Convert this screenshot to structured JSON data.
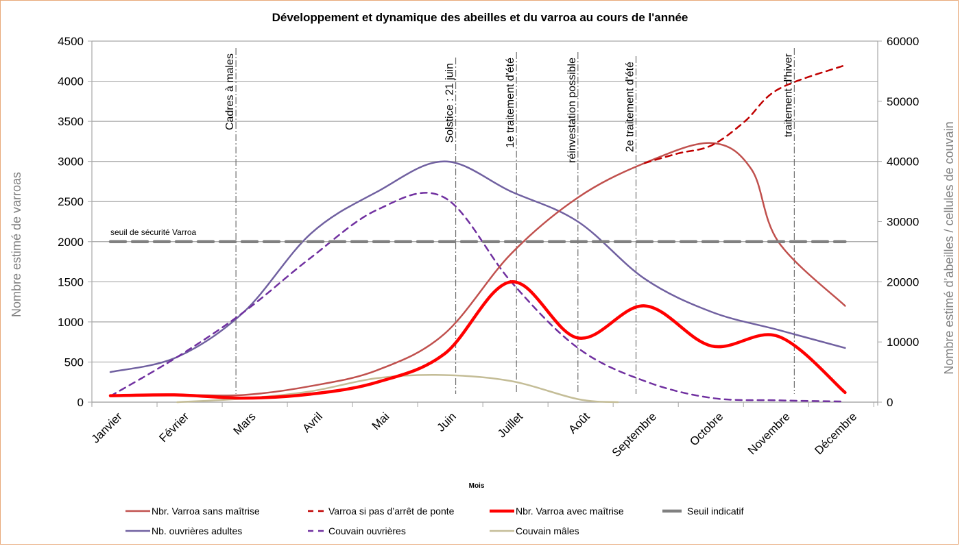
{
  "chart_data": {
    "type": "line",
    "title": "Développement et dynamique des abeilles et du varroa au cours de l'année",
    "xlabel": "Mois",
    "ylabel": "Nombre estimé de varroas",
    "y2label": "Nombre estimé d’abeilles / cellules de couvain",
    "categories": [
      "Janvier",
      "Février",
      "Mars",
      "Avril",
      "Mai",
      "Juin",
      "Juillet",
      "Août",
      "Septembre",
      "Octobre",
      "Novembre",
      "Décembre"
    ],
    "ylim": [
      0,
      4500
    ],
    "yticks": [
      0,
      500,
      1000,
      1500,
      2000,
      2500,
      3000,
      3500,
      4000,
      4500
    ],
    "y2lim": [
      0,
      60000
    ],
    "y2ticks": [
      0,
      10000,
      20000,
      30000,
      40000,
      50000,
      60000
    ],
    "grid": true,
    "legend_position": "bottom",
    "series": [
      {
        "name": "Nbr. Varroa sans maîtrise",
        "axis": "left",
        "style": "solid",
        "color": "#c0504d",
        "width": "medium",
        "x": [
          0,
          1,
          2,
          3,
          4,
          5,
          6,
          7,
          8,
          9,
          9.6,
          10,
          11
        ],
        "values": [
          80,
          90,
          90,
          200,
          400,
          850,
          1850,
          2550,
          2980,
          3230,
          2900,
          2000,
          1200
        ]
      },
      {
        "name": "Varroa si pas d’arrêt de ponte",
        "axis": "left",
        "style": "dashed",
        "color": "#c00000",
        "width": "medium",
        "x": [
          8,
          8.5,
          9,
          9.5,
          10,
          11
        ],
        "values": [
          2980,
          3100,
          3200,
          3500,
          3900,
          4200
        ]
      },
      {
        "name": "Nbr. Varroa avec maîtrise",
        "axis": "left",
        "style": "solid",
        "color": "#ff0000",
        "width": "thick",
        "x": [
          0,
          1,
          2,
          3,
          4,
          5,
          6,
          7,
          8,
          9,
          10,
          11
        ],
        "values": [
          80,
          90,
          50,
          100,
          250,
          600,
          1500,
          800,
          1200,
          700,
          820,
          120
        ]
      },
      {
        "name": "Seuil indicatif",
        "axis": "left",
        "style": "dashed",
        "color": "#808080",
        "width": "thick",
        "x": [
          0,
          11
        ],
        "values": [
          2000,
          2000
        ]
      },
      {
        "name": "Nb. ouvrières adultes",
        "axis": "right",
        "style": "solid",
        "color": "#7060a0",
        "width": "medium",
        "x": [
          0,
          1,
          2,
          3,
          4,
          5,
          6,
          7,
          8,
          9,
          10,
          11
        ],
        "values": [
          5000,
          7500,
          15000,
          28000,
          35000,
          40000,
          35000,
          30000,
          20500,
          15000,
          12000,
          9000
        ]
      },
      {
        "name": "Couvain ouvrières",
        "axis": "right",
        "style": "dashed",
        "color": "#7030a0",
        "width": "medium",
        "x": [
          0,
          1,
          2,
          3,
          4,
          5,
          6,
          7,
          8,
          9,
          10,
          11
        ],
        "values": [
          1000,
          7500,
          15000,
          24000,
          32000,
          34000,
          20000,
          9000,
          3500,
          700,
          300,
          100
        ]
      },
      {
        "name": "Couvain mâles",
        "axis": "right",
        "style": "solid",
        "color": "#c4bd97",
        "width": "medium",
        "x": [
          1,
          2,
          3,
          4,
          5,
          6,
          7,
          7.6
        ],
        "values": [
          0,
          600,
          1800,
          4000,
          4500,
          3500,
          500,
          0
        ]
      }
    ],
    "vertical_markers": [
      {
        "x": 1.88,
        "label": "Cadres à males"
      },
      {
        "x": 5.17,
        "label": "Solstice : 21 juin"
      },
      {
        "x": 6.08,
        "label": "1e traitement d'été"
      },
      {
        "x": 7.0,
        "label": "réinvestation possible"
      },
      {
        "x": 7.87,
        "label": "2e traitement d'été"
      },
      {
        "x": 10.24,
        "label": "traitement d'hiver"
      }
    ],
    "annotations": [
      {
        "text": "seuil de sécurité Varroa",
        "near_series": "Seuil indicatif",
        "x": 0.0,
        "y": 2000
      }
    ]
  }
}
